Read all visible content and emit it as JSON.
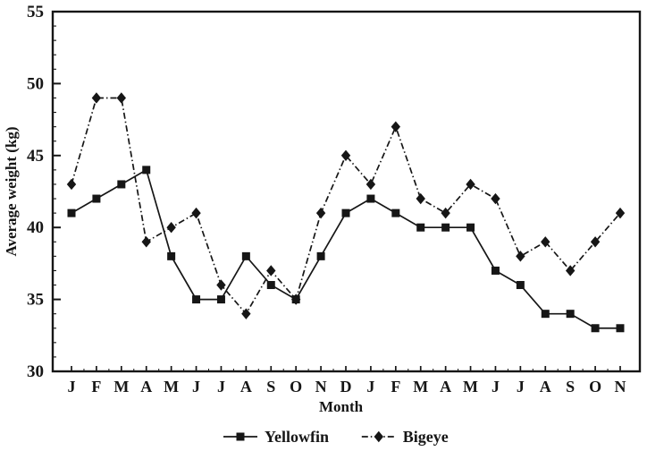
{
  "figure": {
    "background": "#ffffff",
    "ink": "#161616"
  },
  "chart_data": {
    "type": "line",
    "title": "",
    "xlabel": "Month",
    "ylabel": "Average weight (kg)",
    "ylim": [
      30,
      55
    ],
    "yticks": [
      30,
      35,
      40,
      45,
      50,
      55
    ],
    "y_minor_step": 1,
    "grid": false,
    "legend_position": "bottom-center",
    "categories": [
      "J",
      "F",
      "M",
      "A",
      "M",
      "J",
      "J",
      "A",
      "S",
      "O",
      "N",
      "D",
      "J",
      "F",
      "M",
      "A",
      "M",
      "J",
      "J",
      "A",
      "S",
      "O",
      "N"
    ],
    "series": [
      {
        "name": "Yellowfin",
        "marker": "square",
        "line_style": "solid",
        "color": "#161616",
        "values": [
          41,
          42,
          43,
          44,
          38,
          35,
          35,
          38,
          36,
          35,
          38,
          41,
          42,
          41,
          40,
          40,
          40,
          37,
          36,
          34,
          34,
          33,
          33
        ]
      },
      {
        "name": "Bigeye",
        "marker": "diamond",
        "line_style": "dash-dot",
        "color": "#161616",
        "values": [
          43,
          49,
          49,
          39,
          40,
          41,
          36,
          34,
          37,
          35,
          41,
          45,
          43,
          47,
          42,
          41,
          43,
          42,
          38,
          39,
          37,
          39,
          41
        ]
      }
    ]
  }
}
